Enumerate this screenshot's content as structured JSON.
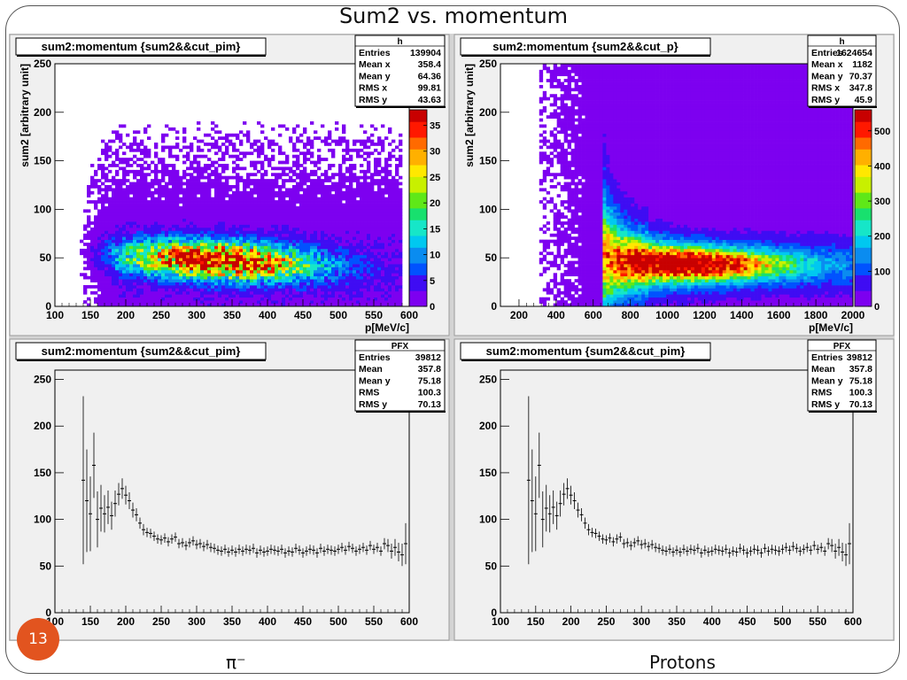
{
  "slide": {
    "title": "Sum2 vs. momentum",
    "page_number": "13",
    "captions": {
      "left": "π⁻",
      "right": "Protons"
    }
  },
  "colors": {
    "palette": [
      "#7d00f0",
      "#3f0cf3",
      "#0052ff",
      "#0a8cf0",
      "#00c8f0",
      "#16e6c8",
      "#18e06e",
      "#5fe818",
      "#c8f000",
      "#ffe800",
      "#ffb000",
      "#ff6a00",
      "#ff1800",
      "#c80000"
    ],
    "frame_bg": "#f0f0f0",
    "stroke": "#000000"
  },
  "panels": [
    {
      "kind": "hist2d",
      "title": "sum2:momentum {sum2&&cut_pim}",
      "stats": {
        "title": "h",
        "rows": [
          [
            "Entries",
            "139904"
          ],
          [
            "Mean x",
            "358.4"
          ],
          [
            "Mean y",
            "64.36"
          ],
          [
            "RMS x",
            "99.81"
          ],
          [
            "RMS y",
            "43.63"
          ]
        ]
      },
      "xlabel": "p[MeV/c]",
      "ylabel": "sum2 [arbitrary unit]"
    },
    {
      "kind": "hist2d",
      "title": "sum2:momentum {sum2&&cut_p}",
      "stats": {
        "title": "h",
        "rows": [
          [
            "Entries",
            "1624654"
          ],
          [
            "Mean x",
            "1182"
          ],
          [
            "Mean y",
            "70.37"
          ],
          [
            "RMS x",
            "347.8"
          ],
          [
            "RMS y",
            "45.9"
          ]
        ]
      },
      "xlabel": "p[MeV/c]",
      "ylabel": "sum2 [arbitrary unit]"
    },
    {
      "kind": "profile",
      "title": "sum2:momentum {sum2&&cut_pim}",
      "stats": {
        "title": "PFX",
        "rows": [
          [
            "Entries",
            "39812"
          ],
          [
            "Mean",
            "357.8"
          ],
          [
            "Mean y",
            "75.18"
          ],
          [
            "RMS",
            "100.3"
          ],
          [
            "RMS y",
            "70.13"
          ]
        ]
      },
      "xlabel": "",
      "ylabel": ""
    },
    {
      "kind": "profile",
      "title": "sum2:momentum {sum2&&cut_pim}",
      "stats": {
        "title": "PFX",
        "rows": [
          [
            "Entries",
            "39812"
          ],
          [
            "Mean",
            "357.8"
          ],
          [
            "Mean y",
            "75.18"
          ],
          [
            "RMS",
            "100.3"
          ],
          [
            "RMS y",
            "70.13"
          ]
        ]
      },
      "xlabel": "",
      "ylabel": ""
    }
  ],
  "chart_data": [
    {
      "type": "heatmap",
      "title": "sum2:momentum {sum2&&cut_pim}",
      "xlabel": "p[MeV/c]",
      "ylabel": "sum2 [arbitrary unit]",
      "xlim": [
        100,
        600
      ],
      "ylim": [
        0,
        250
      ],
      "xticks": [
        "100",
        "150",
        "200",
        "250",
        "300",
        "350",
        "400",
        "450",
        "500",
        "550",
        "600"
      ],
      "yticks": [
        "0",
        "50",
        "100",
        "150",
        "200",
        "250"
      ],
      "z_ticks": [
        "0",
        "5",
        "10",
        "15",
        "20",
        "25",
        "30",
        "35"
      ],
      "z_max": 38,
      "xbins": 100,
      "ybins": 80,
      "occupied_x_range": [
        130,
        590
      ],
      "peak": {
        "x": 350,
        "y": 36
      },
      "palette": "rainbow",
      "floor_color": "none"
    },
    {
      "type": "heatmap",
      "title": "sum2:momentum {sum2&&cut_p}",
      "xlabel": "p[MeV/c]",
      "ylabel": "sum2 [arbitrary unit]",
      "xlim": [
        100,
        2000
      ],
      "ylim": [
        0,
        250
      ],
      "xticks": [
        "200",
        "400",
        "600",
        "800",
        "1000",
        "1200",
        "1400",
        "1600",
        "1800",
        "2000"
      ],
      "yticks": [
        "0",
        "50",
        "100",
        "150",
        "200",
        "250"
      ],
      "z_ticks": [
        "0",
        "100",
        "200",
        "300",
        "400",
        "500"
      ],
      "z_max": 560,
      "xbins": 100,
      "ybins": 80,
      "occupied_x_range": [
        300,
        2000
      ],
      "peak": {
        "x": 1100,
        "y": 38
      },
      "palette": "rainbow",
      "floor_color": "violet"
    },
    {
      "type": "line",
      "title": "sum2:momentum {sum2&&cut_pim}",
      "xlabel": "",
      "ylabel": "",
      "xlim": [
        100,
        600
      ],
      "ylim": [
        0,
        260
      ],
      "xticks": [
        "100",
        "150",
        "200",
        "250",
        "300",
        "350",
        "400",
        "450",
        "500",
        "550",
        "600"
      ],
      "yticks": [
        "0",
        "50",
        "100",
        "150",
        "200",
        "250"
      ],
      "x": [
        140,
        145,
        150,
        155,
        160,
        165,
        170,
        175,
        180,
        185,
        190,
        195,
        200,
        205,
        210,
        215,
        220,
        225,
        230,
        235,
        240,
        245,
        250,
        255,
        260,
        265,
        270,
        275,
        280,
        285,
        290,
        295,
        300,
        305,
        310,
        315,
        320,
        325,
        330,
        335,
        340,
        345,
        350,
        355,
        360,
        365,
        370,
        375,
        380,
        385,
        390,
        395,
        400,
        405,
        410,
        415,
        420,
        425,
        430,
        435,
        440,
        445,
        450,
        455,
        460,
        465,
        470,
        475,
        480,
        485,
        490,
        495,
        500,
        505,
        510,
        515,
        520,
        525,
        530,
        535,
        540,
        545,
        550,
        555,
        560,
        565,
        570,
        575,
        580,
        585,
        590,
        595
      ],
      "y": [
        142,
        120,
        106,
        158,
        100,
        112,
        106,
        113,
        104,
        117,
        127,
        133,
        126,
        120,
        110,
        105,
        96,
        89,
        86,
        85,
        82,
        79,
        78,
        80,
        76,
        79,
        81,
        74,
        75,
        72,
        75,
        77,
        73,
        74,
        71,
        73,
        70,
        69,
        67,
        66,
        68,
        65,
        67,
        65,
        68,
        66,
        68,
        67,
        69,
        64,
        67,
        65,
        66,
        68,
        67,
        66,
        68,
        64,
        66,
        65,
        69,
        67,
        64,
        66,
        68,
        67,
        64,
        69,
        66,
        68,
        67,
        66,
        68,
        70,
        67,
        71,
        69,
        66,
        68,
        70,
        67,
        72,
        68,
        70,
        66,
        74,
        72,
        66,
        70,
        65,
        62,
        74
      ],
      "err": [
        90,
        55,
        40,
        35,
        30,
        25,
        20,
        18,
        15,
        14,
        12,
        11,
        10,
        9,
        8,
        7,
        6,
        6,
        5,
        5,
        5,
        5,
        5,
        5,
        5,
        5,
        5,
        5,
        5,
        5,
        5,
        5,
        5,
        5,
        5,
        5,
        5,
        5,
        5,
        5,
        5,
        5,
        5,
        5,
        5,
        5,
        5,
        5,
        5,
        5,
        5,
        5,
        5,
        5,
        5,
        5,
        5,
        5,
        5,
        5,
        5,
        5,
        5,
        5,
        5,
        5,
        5,
        5,
        5,
        5,
        5,
        5,
        5,
        5,
        5,
        5,
        5,
        5,
        5,
        5,
        5,
        5,
        5,
        5,
        5,
        6,
        7,
        8,
        9,
        10,
        12,
        22
      ]
    },
    {
      "type": "line",
      "title": "sum2:momentum {sum2&&cut_pim}",
      "xlabel": "",
      "ylabel": "",
      "xlim": [
        100,
        600
      ],
      "ylim": [
        0,
        260
      ],
      "xticks": [
        "100",
        "150",
        "200",
        "250",
        "300",
        "350",
        "400",
        "450",
        "500",
        "550",
        "600"
      ],
      "yticks": [
        "0",
        "50",
        "100",
        "150",
        "200",
        "250"
      ],
      "x": [
        140,
        145,
        150,
        155,
        160,
        165,
        170,
        175,
        180,
        185,
        190,
        195,
        200,
        205,
        210,
        215,
        220,
        225,
        230,
        235,
        240,
        245,
        250,
        255,
        260,
        265,
        270,
        275,
        280,
        285,
        290,
        295,
        300,
        305,
        310,
        315,
        320,
        325,
        330,
        335,
        340,
        345,
        350,
        355,
        360,
        365,
        370,
        375,
        380,
        385,
        390,
        395,
        400,
        405,
        410,
        415,
        420,
        425,
        430,
        435,
        440,
        445,
        450,
        455,
        460,
        465,
        470,
        475,
        480,
        485,
        490,
        495,
        500,
        505,
        510,
        515,
        520,
        525,
        530,
        535,
        540,
        545,
        550,
        555,
        560,
        565,
        570,
        575,
        580,
        585,
        590,
        595
      ],
      "y": [
        142,
        120,
        106,
        158,
        100,
        112,
        106,
        113,
        104,
        117,
        127,
        133,
        126,
        120,
        110,
        105,
        96,
        89,
        86,
        85,
        82,
        79,
        78,
        80,
        76,
        79,
        81,
        74,
        75,
        72,
        75,
        77,
        73,
        74,
        71,
        73,
        70,
        69,
        67,
        66,
        68,
        65,
        67,
        65,
        68,
        66,
        68,
        67,
        69,
        64,
        67,
        65,
        66,
        68,
        67,
        66,
        68,
        64,
        66,
        65,
        69,
        67,
        64,
        66,
        68,
        67,
        64,
        69,
        66,
        68,
        67,
        66,
        68,
        70,
        67,
        71,
        69,
        66,
        68,
        70,
        67,
        72,
        68,
        70,
        66,
        74,
        72,
        66,
        70,
        65,
        62,
        74
      ],
      "err": [
        90,
        55,
        40,
        35,
        30,
        25,
        20,
        18,
        15,
        14,
        12,
        11,
        10,
        9,
        8,
        7,
        6,
        6,
        5,
        5,
        5,
        5,
        5,
        5,
        5,
        5,
        5,
        5,
        5,
        5,
        5,
        5,
        5,
        5,
        5,
        5,
        5,
        5,
        5,
        5,
        5,
        5,
        5,
        5,
        5,
        5,
        5,
        5,
        5,
        5,
        5,
        5,
        5,
        5,
        5,
        5,
        5,
        5,
        5,
        5,
        5,
        5,
        5,
        5,
        5,
        5,
        5,
        5,
        5,
        5,
        5,
        5,
        5,
        5,
        5,
        5,
        5,
        5,
        5,
        5,
        5,
        5,
        5,
        5,
        5,
        6,
        7,
        8,
        9,
        10,
        12,
        22
      ]
    }
  ]
}
